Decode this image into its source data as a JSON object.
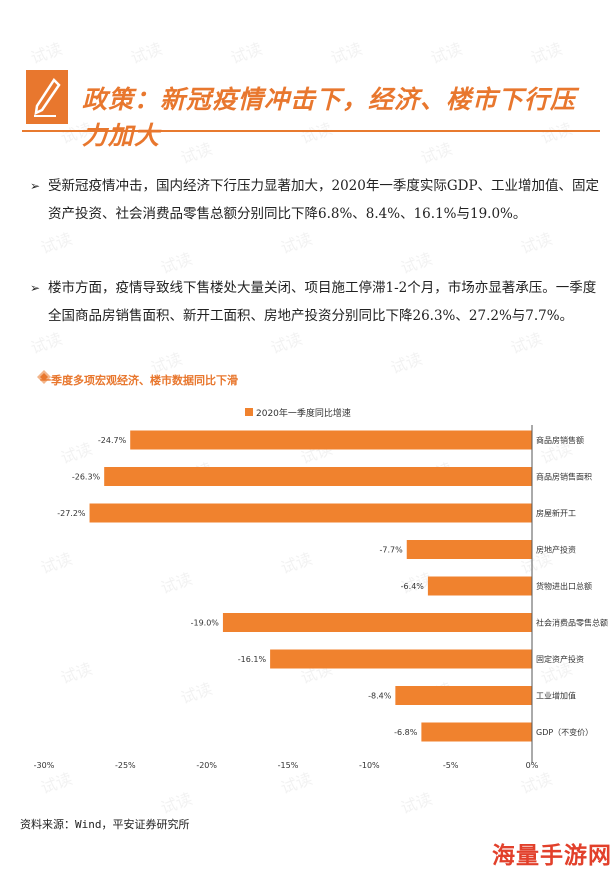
{
  "title": "政策：新冠疫情冲击下，经济、楼市下行压力加大",
  "bullets": [
    "受新冠疫情冲击，国内经济下行压力显著加大，2020年一季度实际GDP、工业增加值、固定资产投资、社会消费品零售总额分别同比下降6.8%、8.4%、16.1%与19.0%。",
    "楼市方面，疫情导致线下售楼处大量关闭、项目施工停滞1-2个月，市场亦显著承压。一季度全国商品房销售面积、新开工面积、房地产投资分别同比下降26.3%、27.2%与7.7%。"
  ],
  "chart_heading": "一季度多项宏观经济、楼市数据同比下滑",
  "source": "资料来源：Wind，平安证券研究所",
  "watermark": "试读",
  "corner_badge": "海量手游网",
  "colors": {
    "accent": "#e8772e",
    "bar": "#f0822e",
    "badge": "#e2402b"
  },
  "chart_data": {
    "type": "bar",
    "orientation": "horizontal",
    "series": [
      {
        "name": "2020年一季度同比增速",
        "values": [
          -24.7,
          -26.3,
          -27.2,
          -7.7,
          -6.4,
          -19.0,
          -16.1,
          -8.4,
          -6.8
        ]
      }
    ],
    "categories": [
      "商品房销售额",
      "商品房销售面积",
      "房屋新开工",
      "房地产投资",
      "货物进出口总额",
      "社会消费品零售总额",
      "固定资产投资",
      "工业增加值",
      "GDP（不变价）"
    ],
    "value_labels": [
      "-24.7%",
      "-26.3%",
      "-27.2%",
      "-7.7%",
      "-6.4%",
      "-19.0%",
      "-16.1%",
      "-8.4%",
      "-6.8%"
    ],
    "xlim": [
      -30,
      0
    ],
    "x_ticks": [
      "-30%",
      "-25%",
      "-20%",
      "-15%",
      "-10%",
      "-5%",
      "0%"
    ],
    "legend_position": "top"
  }
}
